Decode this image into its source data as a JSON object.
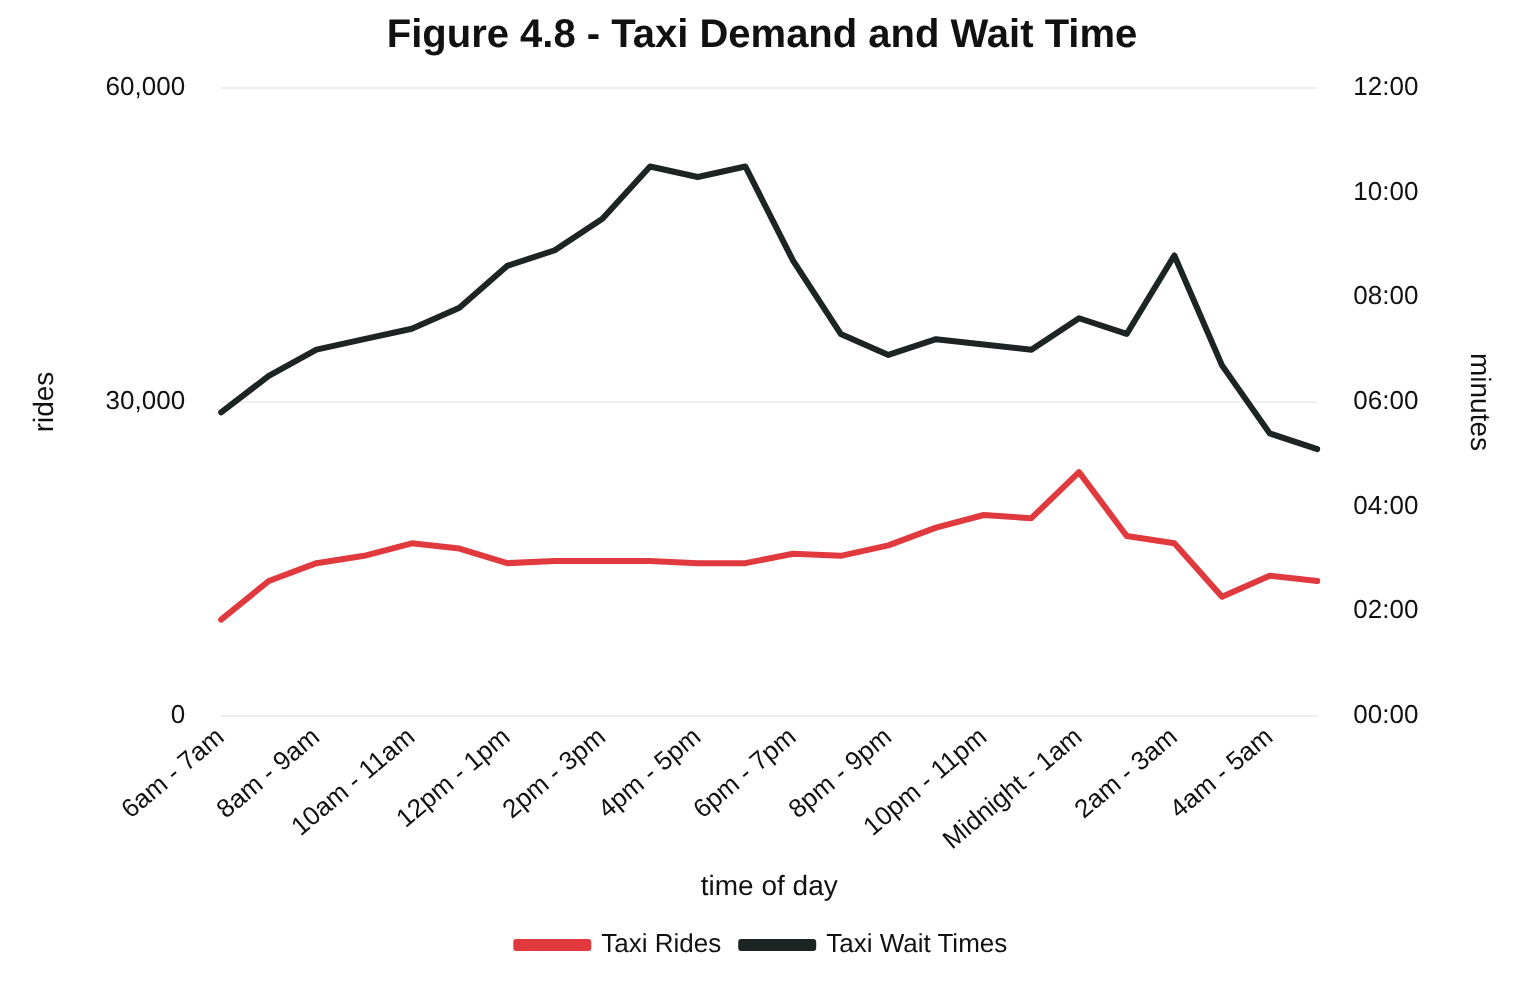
{
  "chart_data": {
    "type": "line",
    "title": "Figure 4.8 - Taxi Demand and Wait Time",
    "xlabel": "time of day",
    "ylabel": "rides",
    "y2label": "minutes",
    "categories": [
      "6am - 7am",
      null,
      "8am - 9am",
      null,
      "10am - 11am",
      null,
      "12pm - 1pm",
      null,
      "2pm - 3pm",
      null,
      "4pm - 5pm",
      null,
      "6pm - 7pm",
      null,
      "8pm - 9pm",
      null,
      "10pm - 11pm",
      null,
      "Midnight - 1am",
      null,
      "2am - 3am",
      null,
      "4am - 5am",
      null
    ],
    "series": [
      {
        "name": "Taxi Rides",
        "color": "#e0393e",
        "values": [
          9200,
          12900,
          14600,
          15300,
          16500,
          16000,
          14600,
          14800,
          14800,
          14800,
          14600,
          14600,
          15500,
          15300,
          16300,
          18000,
          19200,
          18900,
          23300,
          17200,
          16500,
          11400,
          13400,
          12900
        ]
      },
      {
        "name": "Taxi Wait Times",
        "color": "#1c2424",
        "axis": "y2",
        "values": [
          5.8,
          6.5,
          7.0,
          7.2,
          7.4,
          7.8,
          8.6,
          8.9,
          9.5,
          10.5,
          10.3,
          10.5,
          8.7,
          7.3,
          6.9,
          7.2,
          7.1,
          7.0,
          7.6,
          7.3,
          8.8,
          6.7,
          5.4,
          5.1
        ]
      }
    ],
    "ylim": [
      0,
      60000
    ],
    "yticks": [
      {
        "value": 0,
        "label": "0"
      },
      {
        "value": 30000,
        "label": "30,000"
      },
      {
        "value": 60000,
        "label": "60,000"
      }
    ],
    "y2lim": [
      0,
      12
    ],
    "y2ticks": [
      {
        "value": 0,
        "label": "00:00"
      },
      {
        "value": 2,
        "label": "02:00"
      },
      {
        "value": 4,
        "label": "04:00"
      },
      {
        "value": 6,
        "label": "06:00"
      },
      {
        "value": 8,
        "label": "08:00"
      },
      {
        "value": 10,
        "label": "10:00"
      },
      {
        "value": 12,
        "label": "12:00"
      }
    ],
    "grid": "y",
    "legend": "bottom",
    "marker": "none",
    "line_style": "solid"
  }
}
